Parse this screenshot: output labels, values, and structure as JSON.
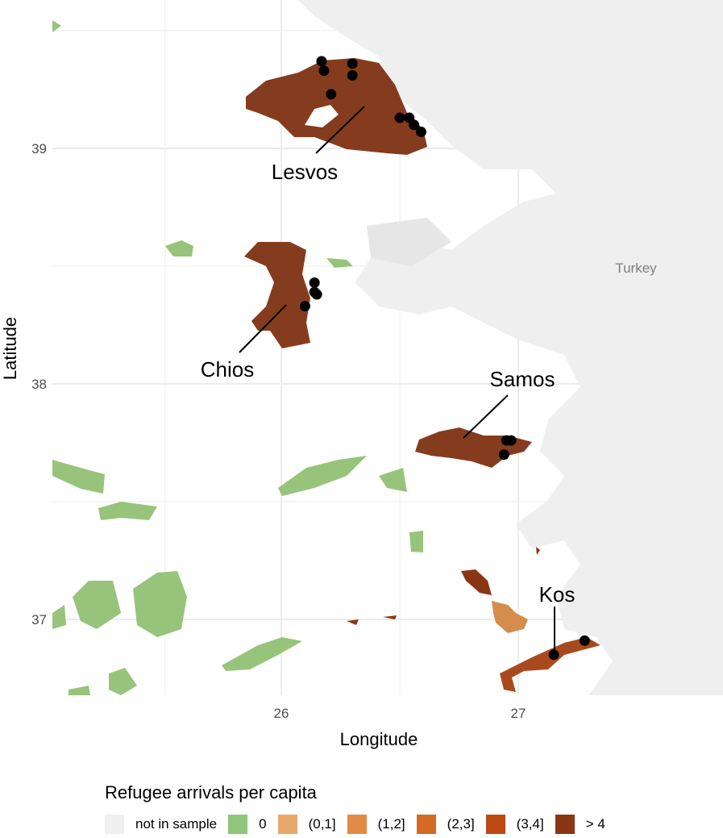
{
  "axes": {
    "xlabel": "Longitude",
    "ylabel": "Latitude",
    "x_ticks": [
      "26",
      "27"
    ],
    "y_ticks": [
      "39",
      "38",
      "37"
    ]
  },
  "country_label": "Turkey",
  "islands": [
    {
      "name": "Lesvos",
      "category": "> 4"
    },
    {
      "name": "Chios",
      "category": "> 4"
    },
    {
      "name": "Samos",
      "category": "> 4"
    },
    {
      "name": "Kos",
      "category": "(3,4]"
    }
  ],
  "points": [
    {
      "lon": 26.17,
      "lat": 39.37
    },
    {
      "lon": 26.18,
      "lat": 39.33
    },
    {
      "lon": 26.3,
      "lat": 39.36
    },
    {
      "lon": 26.3,
      "lat": 39.31
    },
    {
      "lon": 26.21,
      "lat": 39.23
    },
    {
      "lon": 26.5,
      "lat": 39.13
    },
    {
      "lon": 26.54,
      "lat": 39.13
    },
    {
      "lon": 26.56,
      "lat": 39.1
    },
    {
      "lon": 26.59,
      "lat": 39.07
    },
    {
      "lon": 26.14,
      "lat": 38.43
    },
    {
      "lon": 26.14,
      "lat": 38.39
    },
    {
      "lon": 26.15,
      "lat": 38.38
    },
    {
      "lon": 26.1,
      "lat": 38.33
    },
    {
      "lon": 26.95,
      "lat": 37.76
    },
    {
      "lon": 26.97,
      "lat": 37.76
    },
    {
      "lon": 26.94,
      "lat": 37.7
    },
    {
      "lon": 27.15,
      "lat": 36.85
    },
    {
      "lon": 27.28,
      "lat": 36.91
    }
  ],
  "legend": {
    "title": "Refugee arrivals per capita",
    "items": [
      {
        "label": "not in sample",
        "color": "#efefef"
      },
      {
        "label": "0",
        "color": "#90c57a"
      },
      {
        "label": "(0,1]",
        "color": "#e8a86c"
      },
      {
        "label": "(1,2]",
        "color": "#e38a45"
      },
      {
        "label": "(2,3]",
        "color": "#d56a25"
      },
      {
        "label": "(3,4]",
        "color": "#bc4a12"
      },
      {
        "label": "> 4",
        "color": "#8b3613"
      }
    ]
  }
}
